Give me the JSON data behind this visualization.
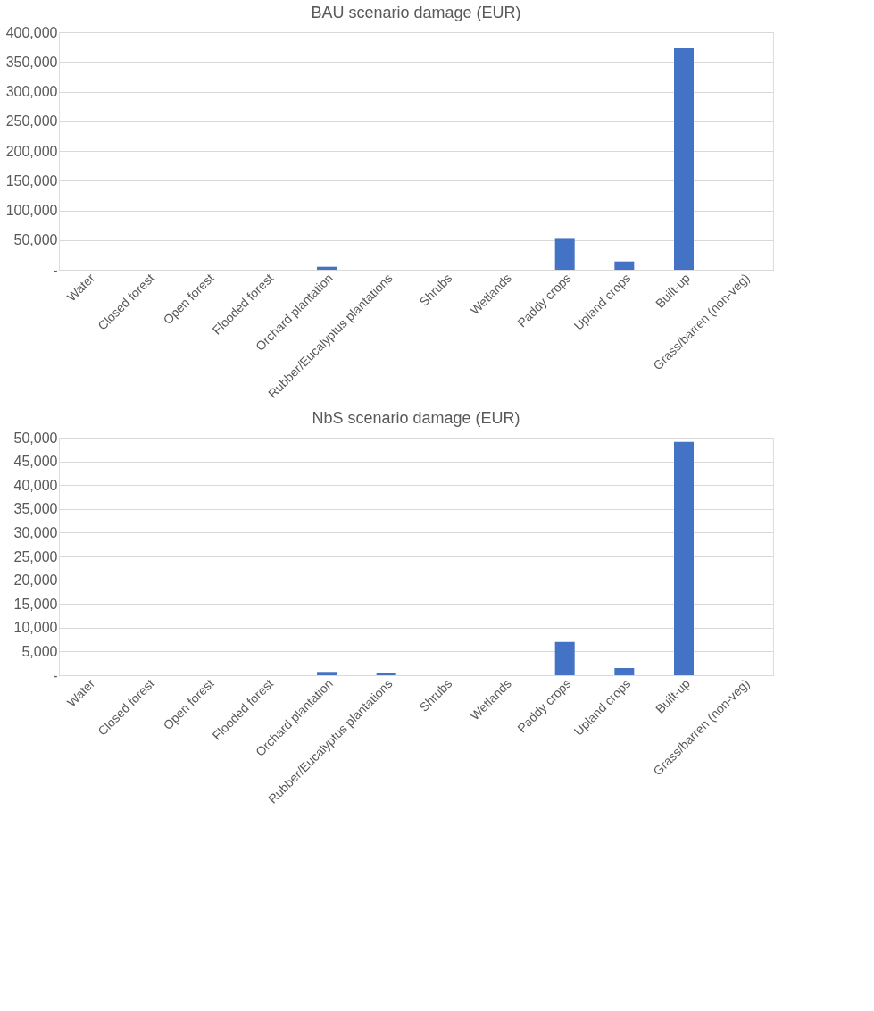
{
  "chart_data": [
    {
      "type": "bar",
      "title": "BAU scenario damage (EUR)",
      "categories": [
        "Water",
        "Closed forest",
        "Open forest",
        "Flooded forest",
        "Orchard plantation",
        "Rubber/Eucalyptus plantations",
        "Shrubs",
        "Wetlands",
        "Paddy crops",
        "Upland crops",
        "Built-up",
        "Grass/barren (non-veg)"
      ],
      "values": [
        0,
        0,
        0,
        0,
        5000,
        0,
        0,
        0,
        52000,
        14000,
        373000,
        0
      ],
      "color": "#4472c4",
      "ylim": [
        0,
        400000
      ],
      "yticks": [
        {
          "value": 0,
          "label": "-"
        },
        {
          "value": 50000,
          "label": "50,000"
        },
        {
          "value": 100000,
          "label": "100,000"
        },
        {
          "value": 150000,
          "label": "150,000"
        },
        {
          "value": 200000,
          "label": "200,000"
        },
        {
          "value": 250000,
          "label": "250,000"
        },
        {
          "value": 300000,
          "label": "300,000"
        },
        {
          "value": 350000,
          "label": "350,000"
        },
        {
          "value": 400000,
          "label": "400,000"
        }
      ],
      "grid": "y"
    },
    {
      "type": "bar",
      "title": "NbS scenario damage (EUR)",
      "categories": [
        "Water",
        "Closed forest",
        "Open forest",
        "Flooded forest",
        "Orchard plantation",
        "Rubber/Eucalyptus plantations",
        "Shrubs",
        "Wetlands",
        "Paddy crops",
        "Upland crops",
        "Built-up",
        "Grass/barren (non-veg)"
      ],
      "values": [
        0,
        0,
        0,
        0,
        700,
        500,
        0,
        0,
        7000,
        1500,
        49100,
        0
      ],
      "color": "#4472c4",
      "ylim": [
        0,
        50000
      ],
      "yticks": [
        {
          "value": 0,
          "label": "-"
        },
        {
          "value": 5000,
          "label": "5,000"
        },
        {
          "value": 10000,
          "label": "10,000"
        },
        {
          "value": 15000,
          "label": "15,000"
        },
        {
          "value": 20000,
          "label": "20,000"
        },
        {
          "value": 25000,
          "label": "25,000"
        },
        {
          "value": 30000,
          "label": "30,000"
        },
        {
          "value": 35000,
          "label": "35,000"
        },
        {
          "value": 40000,
          "label": "40,000"
        },
        {
          "value": 45000,
          "label": "45,000"
        },
        {
          "value": 50000,
          "label": "50,000"
        }
      ],
      "grid": "y"
    }
  ]
}
